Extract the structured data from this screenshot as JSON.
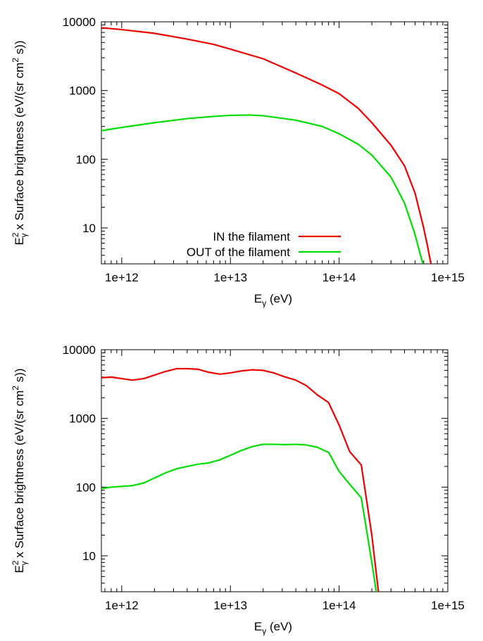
{
  "chart_data": [
    {
      "type": "line",
      "title": "",
      "xlabel": {
        "main": "E",
        "sub": "γ",
        "rest": " (eV)"
      },
      "ylabel": {
        "pre": "E",
        "sup": "2",
        "sub": "γ",
        "mid": " x Surface brightness (eV/(sr cm",
        "sup2": "2",
        "post": " s))"
      },
      "x_scale": "log",
      "y_scale": "log",
      "xlim": [
        650000000000.0,
        1000000000000000.0
      ],
      "ylim": [
        3,
        10000
      ],
      "x_ticks": [
        1000000000000.0,
        10000000000000.0,
        100000000000000.0,
        1000000000000000.0
      ],
      "x_tick_labels": [
        "1e+12",
        "1e+13",
        "1e+14",
        "1e+15"
      ],
      "y_ticks": [
        10,
        100,
        1000,
        10000
      ],
      "y_tick_labels": [
        "10",
        "100",
        "1000",
        "10000"
      ],
      "legend_position": "bottom-center",
      "series": [
        {
          "name": "IN the filament",
          "color": "#ee0000",
          "x": [
            650000000000.0,
            1000000000000.0,
            2000000000000.0,
            4000000000000.0,
            7000000000000.0,
            10000000000000.0,
            20000000000000.0,
            40000000000000.0,
            70000000000000.0,
            100000000000000.0,
            150000000000000.0,
            200000000000000.0,
            300000000000000.0,
            400000000000000.0,
            500000000000000.0,
            600000000000000.0,
            650000000000000.0,
            700000000000000.0
          ],
          "y": [
            8200,
            7700,
            6800,
            5600,
            4700,
            4000,
            2900,
            1800,
            1200,
            900,
            550,
            340,
            160,
            80,
            32,
            10,
            5.5,
            3
          ]
        },
        {
          "name": "OUT of the filament",
          "color": "#00dd00",
          "x": [
            650000000000.0,
            1000000000000.0,
            2000000000000.0,
            4000000000000.0,
            7000000000000.0,
            10000000000000.0,
            15000000000000.0,
            20000000000000.0,
            40000000000000.0,
            70000000000000.0,
            100000000000000.0,
            150000000000000.0,
            200000000000000.0,
            300000000000000.0,
            400000000000000.0,
            500000000000000.0,
            550000000000000.0,
            590000000000000.0
          ],
          "y": [
            260,
            290,
            340,
            390,
            420,
            435,
            440,
            430,
            370,
            300,
            235,
            165,
            115,
            55,
            23,
            8,
            4.5,
            3
          ]
        }
      ]
    },
    {
      "type": "line",
      "title": "",
      "xlabel": {
        "main": "E",
        "sub": "γ",
        "rest": " (eV)"
      },
      "ylabel": {
        "pre": "E",
        "sup": "2",
        "sub": "γ",
        "mid": " x Surface brightness (eV/(sr cm",
        "sup2": "2",
        "post": " s))"
      },
      "x_scale": "log",
      "y_scale": "log",
      "xlim": [
        650000000000.0,
        1000000000000000.0
      ],
      "ylim": [
        3,
        10000
      ],
      "x_ticks": [
        1000000000000.0,
        10000000000000.0,
        100000000000000.0,
        1000000000000000.0
      ],
      "x_tick_labels": [
        "1e+12",
        "1e+13",
        "1e+14",
        "1e+15"
      ],
      "y_ticks": [
        10,
        100,
        1000,
        10000
      ],
      "y_tick_labels": [
        "10",
        "100",
        "1000",
        "10000"
      ],
      "series": [
        {
          "name": "IN the filament",
          "color": "#ee0000",
          "x": [
            650000000000.0,
            800000000000.0,
            1250000000000.0,
            1600000000000.0,
            2500000000000.0,
            3200000000000.0,
            4000000000000.0,
            5000000000000.0,
            6300000000000.0,
            8000000000000.0,
            10000000000000.0,
            12500000000000.0,
            16000000000000.0,
            20000000000000.0,
            25000000000000.0,
            32000000000000.0,
            40000000000000.0,
            50000000000000.0,
            63000000000000.0,
            80000000000000.0,
            100000000000000.0,
            125000000000000.0,
            160000000000000.0,
            200000000000000.0,
            230000000000000.0
          ],
          "y": [
            3900,
            4000,
            3600,
            3800,
            4800,
            5300,
            5300,
            5200,
            4700,
            4400,
            4600,
            4900,
            5100,
            5000,
            4600,
            4000,
            3600,
            3000,
            2200,
            1700,
            800,
            330,
            210,
            20,
            3
          ]
        },
        {
          "name": "OUT of the filament",
          "color": "#00dd00",
          "x": [
            650000000000.0,
            800000000000.0,
            1250000000000.0,
            1600000000000.0,
            2500000000000.0,
            3200000000000.0,
            4000000000000.0,
            5000000000000.0,
            6300000000000.0,
            8000000000000.0,
            10000000000000.0,
            12500000000000.0,
            16000000000000.0,
            20000000000000.0,
            25000000000000.0,
            32000000000000.0,
            40000000000000.0,
            50000000000000.0,
            63000000000000.0,
            80000000000000.0,
            100000000000000.0,
            125000000000000.0,
            160000000000000.0,
            200000000000000.0,
            220000000000000.0
          ],
          "y": [
            95,
            100,
            105,
            115,
            160,
            185,
            200,
            215,
            225,
            250,
            290,
            340,
            390,
            420,
            420,
            415,
            420,
            410,
            380,
            320,
            170,
            110,
            70,
            8,
            3
          ]
        }
      ]
    }
  ]
}
